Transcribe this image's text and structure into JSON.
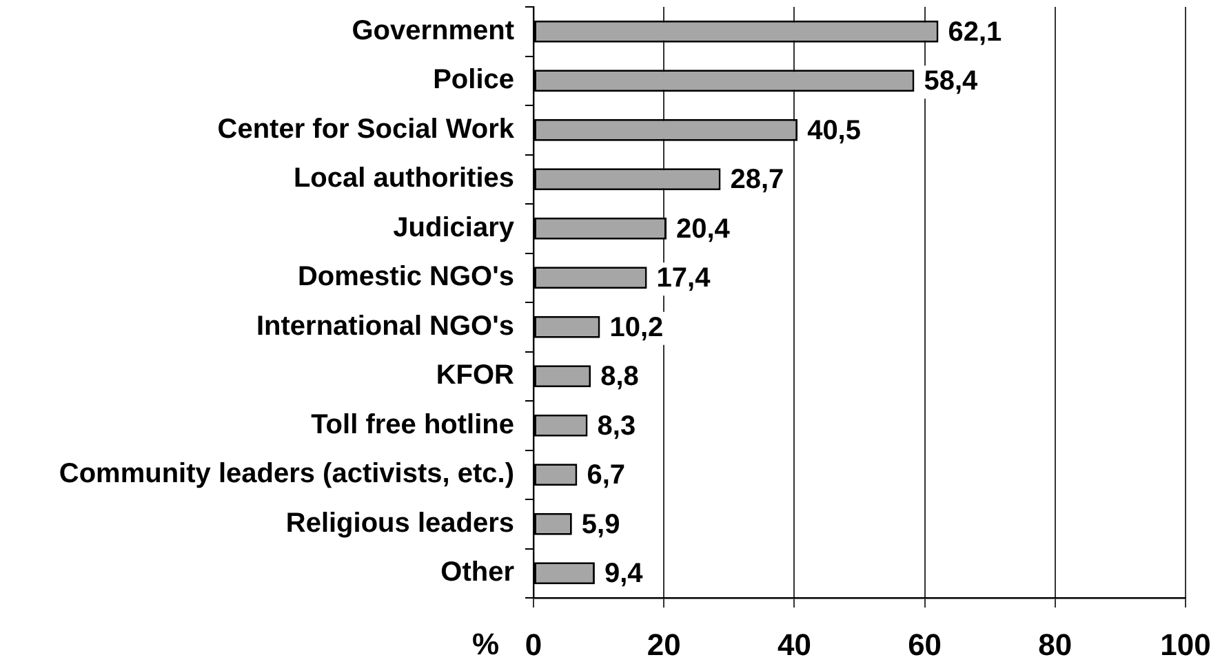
{
  "chart_data": {
    "type": "bar",
    "orientation": "horizontal",
    "xlabel": "%",
    "categories": [
      "Government",
      "Police",
      "Center for Social Work",
      "Local authorities",
      "Judiciary",
      "Domestic NGO's",
      "International NGO's",
      "KFOR",
      "Toll free hotline",
      "Community leaders (activists, etc.)",
      "Religious leaders",
      "Other"
    ],
    "values": [
      62.1,
      58.4,
      40.5,
      28.7,
      20.4,
      17.4,
      10.2,
      8.8,
      8.3,
      6.7,
      5.9,
      9.4
    ],
    "value_labels": [
      "62,1",
      "58,4",
      "40,5",
      "28,7",
      "20,4",
      "17,4",
      "10,2",
      "8,8",
      "8,3",
      "6,7",
      "5,9",
      "9,4"
    ],
    "color": "#a6a6a6",
    "xlim": [
      0,
      100
    ],
    "xticks": [
      0,
      20,
      40,
      60,
      80,
      100
    ],
    "grid": "x",
    "legend": false
  }
}
